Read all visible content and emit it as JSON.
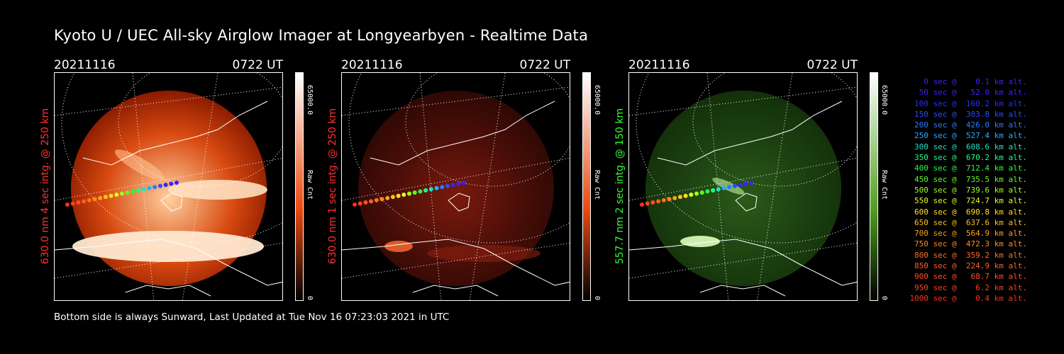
{
  "title": "Kyoto U / UEC All-sky Airglow Imager at Longyearbyen - Realtime Data",
  "footer": "Bottom side is always Sunward, Last Updated at Tue Nov 16 07:23:03 2021 in UTC",
  "panels": [
    {
      "date": "20211116",
      "time": "0722 UT",
      "ylabel": "630.0 nm 4 sec intg. @ 250 km",
      "ylabel_color": "#ff3030",
      "cbar_max": "65000.0",
      "cbar_min": "0",
      "cbar_unit": "Raw Cnt",
      "cbar_color": "#e84a10",
      "style": "red-bright"
    },
    {
      "date": "20211116",
      "time": "0722 UT",
      "ylabel": "630.0 nm 1 sec intg. @ 250 km",
      "ylabel_color": "#ff3030",
      "cbar_max": "65000.0",
      "cbar_min": "0",
      "cbar_unit": "Raw Cnt",
      "cbar_color": "#e84a10",
      "style": "red-dim"
    },
    {
      "date": "20211116",
      "time": "0722 UT",
      "ylabel": "557.7 nm 2 sec intg. @ 150 km",
      "ylabel_color": "#30ff30",
      "cbar_max": "65000.0",
      "cbar_min": "0",
      "cbar_unit": "Raw Cnt",
      "cbar_color": "#4fa020",
      "style": "green"
    }
  ],
  "legend": [
    {
      "text": "   0 sec @    0.1 km alt.",
      "color": "#3a22ff"
    },
    {
      "text": "  50 sec @   52.0 km alt.",
      "color": "#3a22ff"
    },
    {
      "text": " 100 sec @  160.2 km alt.",
      "color": "#2b2bff"
    },
    {
      "text": " 150 sec @  303.8 km alt.",
      "color": "#2b4bff"
    },
    {
      "text": " 200 sec @  426.0 km alt.",
      "color": "#2b7bff"
    },
    {
      "text": " 250 sec @  527.4 km alt.",
      "color": "#22b0ff"
    },
    {
      "text": " 300 sec @  608.6 km alt.",
      "color": "#22e0c0"
    },
    {
      "text": " 350 sec @  670.2 km alt.",
      "color": "#22ff80"
    },
    {
      "text": " 400 sec @  712.4 km alt.",
      "color": "#22ff40"
    },
    {
      "text": " 450 sec @  735.5 km alt.",
      "color": "#60ff20"
    },
    {
      "text": " 500 sec @  739.6 km alt.",
      "color": "#a0ff20"
    },
    {
      "text": " 550 sec @  724.7 km alt.",
      "color": "#e0ff20"
    },
    {
      "text": " 600 sec @  690.8 km alt.",
      "color": "#ffe020"
    },
    {
      "text": " 650 sec @  637.6 km alt.",
      "color": "#ffc020"
    },
    {
      "text": " 700 sec @  564.9 km alt.",
      "color": "#ffa020"
    },
    {
      "text": " 750 sec @  472.3 km alt.",
      "color": "#ff8a20"
    },
    {
      "text": " 800 sec @  359.2 km alt.",
      "color": "#ff7020"
    },
    {
      "text": " 850 sec @  224.9 km alt.",
      "color": "#ff6020"
    },
    {
      "text": " 900 sec @   68.7 km alt.",
      "color": "#ff5020"
    },
    {
      "text": " 950 sec @    6.2 km alt.",
      "color": "#ff4020"
    },
    {
      "text": "1000 sec @    0.4 km alt.",
      "color": "#ff3020"
    }
  ]
}
